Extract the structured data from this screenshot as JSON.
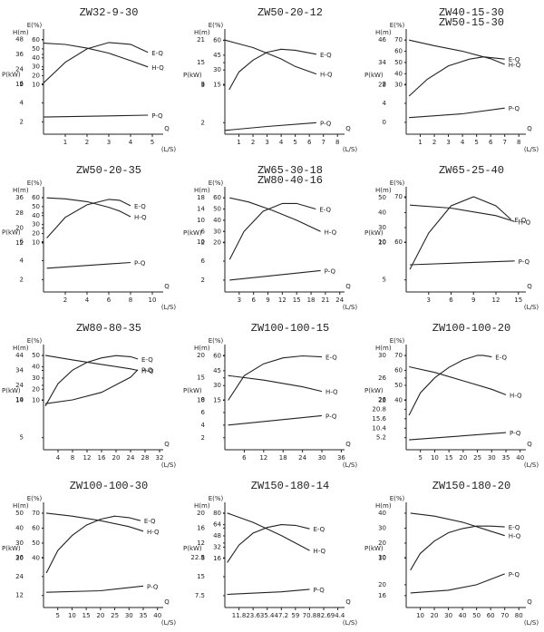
{
  "chart_data": [
    {
      "type": "line",
      "titles": [
        "ZW32-9-30"
      ],
      "xlabel": "Q",
      "xunit": "(L/S)",
      "xlim": [
        0,
        5.5
      ],
      "xticks": [
        1,
        2,
        3,
        4,
        5
      ],
      "ylabel": "H(m)",
      "ylim": [
        -28,
        52
      ],
      "yticks": [
        12,
        24,
        36,
        48
      ],
      "y2label": "E(%)",
      "y2lim": [
        -45,
        66
      ],
      "y2ticks": [
        10,
        20,
        30,
        40,
        50,
        60
      ],
      "y3label": "P(kW)",
      "y3lim": [
        0.7,
        11.2
      ],
      "y3ticks": [
        2,
        4,
        6
      ],
      "series": [
        {
          "name": "E-Q",
          "axis": "y2",
          "x": [
            0,
            1,
            2,
            3,
            4,
            4.8
          ],
          "values": [
            12,
            35,
            50,
            57,
            55,
            46
          ]
        },
        {
          "name": "H-Q",
          "axis": "y",
          "x": [
            0,
            1,
            2,
            3,
            4,
            4.8
          ],
          "values": [
            45,
            44,
            41,
            37,
            31,
            26
          ]
        },
        {
          "name": "P-Q",
          "axis": "y3",
          "x": [
            0,
            4.8
          ],
          "values": [
            2.5,
            2.7
          ]
        }
      ]
    },
    {
      "type": "line",
      "titles": [
        "ZW50-20-12"
      ],
      "xlabel": "Q",
      "xunit": "(L/S)",
      "xlim": [
        0,
        8.5
      ],
      "xticks": [
        1,
        2,
        3,
        4,
        5,
        6,
        7,
        8
      ],
      "ylabel": "H(m)",
      "ylim": [
        -4,
        22.5
      ],
      "yticks": [
        9,
        15,
        21
      ],
      "y2label": "E(%)",
      "y2lim": [
        -35,
        66
      ],
      "y2ticks": [
        15,
        30,
        45,
        60
      ],
      "y3label": "P(kW)",
      "y3lim": [
        1.7,
        4.3
      ],
      "y3ticks": [
        2,
        3
      ],
      "series": [
        {
          "name": "E-Q",
          "axis": "y2",
          "x": [
            0.3,
            1,
            2,
            3,
            4,
            5,
            6.5
          ],
          "values": [
            10,
            28,
            40,
            48,
            51,
            50,
            46
          ]
        },
        {
          "name": "H-Q",
          "axis": "y",
          "x": [
            0,
            1,
            2,
            3,
            4,
            5,
            6.5
          ],
          "values": [
            21,
            20,
            19,
            17.5,
            16,
            14,
            12
          ]
        },
        {
          "name": "P-Q",
          "axis": "y3",
          "x": [
            0,
            3,
            6.5
          ],
          "values": [
            1.8,
            1.9,
            2.0
          ]
        }
      ]
    },
    {
      "type": "line",
      "titles": [
        "ZW40-15-30",
        "ZW50-15-30"
      ],
      "xlabel": "Q",
      "xunit": "(L/S)",
      "xlim": [
        0,
        8.5
      ],
      "xticks": [
        1,
        2,
        3,
        4,
        5,
        6,
        7,
        8
      ],
      "ylabel": "H(m)",
      "ylim": [
        -4.4,
        49
      ],
      "yticks": [
        22,
        34,
        46
      ],
      "y2label": "E(%)",
      "y2lim": [
        -14,
        75
      ],
      "y2ticks": [
        30,
        40,
        50,
        60,
        70
      ],
      "y3label": "P(kW)",
      "y3lim": [
        -2.5,
        18.5
      ],
      "y3ticks": [
        0,
        4,
        8
      ],
      "series": [
        {
          "name": "E-Q",
          "axis": "y2",
          "x": [
            0.2,
            1.5,
            3,
            4.5,
            5.5,
            7
          ],
          "values": [
            20,
            35,
            47,
            53,
            55,
            53
          ]
        },
        {
          "name": "H-Q",
          "axis": "y",
          "x": [
            0.2,
            2,
            4,
            6,
            7
          ],
          "values": [
            46,
            43,
            40,
            36,
            33
          ]
        },
        {
          "name": "P-Q",
          "axis": "y3",
          "x": [
            0.2,
            4,
            7
          ],
          "values": [
            1,
            1.8,
            3
          ]
        }
      ]
    },
    {
      "type": "line",
      "titles": [
        "ZW50-20-35"
      ],
      "xlabel": "Q",
      "xunit": "(L/S)",
      "xlim": [
        0,
        11
      ],
      "xticks": [
        2,
        4,
        6,
        8,
        10
      ],
      "ylabel": "H(m)",
      "ylim": [
        -14,
        39
      ],
      "yticks": [
        12,
        20,
        28,
        36
      ],
      "y2label": "E(%)",
      "y2lim": [
        -45,
        66
      ],
      "y2ticks": [
        10,
        20,
        30,
        40,
        50,
        60
      ],
      "y3label": "P(kW)",
      "y3lim": [
        0.7,
        11.2
      ],
      "y3ticks": [
        2,
        4,
        6
      ],
      "series": [
        {
          "name": "E-Q",
          "axis": "y2",
          "x": [
            0.3,
            2,
            4,
            6,
            7,
            8
          ],
          "values": [
            15,
            38,
            52,
            58,
            57,
            51
          ]
        },
        {
          "name": "H-Q",
          "axis": "y",
          "x": [
            0.3,
            2,
            4,
            6,
            7,
            8
          ],
          "values": [
            36,
            35.5,
            34,
            31,
            29,
            26
          ]
        },
        {
          "name": "P-Q",
          "axis": "y3",
          "x": [
            0.3,
            8
          ],
          "values": [
            3.2,
            3.8
          ]
        }
      ]
    },
    {
      "type": "line",
      "titles": [
        "ZW65-30-18",
        "ZW80-40-16"
      ],
      "xlabel": "Q",
      "xunit": "(L/S)",
      "xlim": [
        0,
        25
      ],
      "xticks": [
        3,
        6,
        9,
        12,
        15,
        18,
        21,
        24
      ],
      "ylabel": "H(m)",
      "ylim": [
        -15.6,
        20
      ],
      "yticks": [
        2,
        6,
        10,
        14,
        18
      ],
      "y2label": "E(%)",
      "y2lim": [
        -24,
        65
      ],
      "y2ticks": [
        20,
        30,
        40,
        50,
        60
      ],
      "y3label": "P(kW)",
      "y3lim": [
        -0.5,
        20.5
      ],
      "y3ticks": [
        2,
        6,
        10
      ],
      "series": [
        {
          "name": "E-Q",
          "axis": "y2",
          "x": [
            1,
            4,
            8,
            12,
            15,
            19
          ],
          "values": [
            5,
            30,
            48,
            55,
            55,
            50
          ]
        },
        {
          "name": "H-Q",
          "axis": "y",
          "x": [
            1,
            5,
            10,
            15,
            20
          ],
          "values": [
            18,
            16.5,
            13.5,
            10,
            6
          ]
        },
        {
          "name": "P-Q",
          "axis": "y3",
          "x": [
            1,
            20
          ],
          "values": [
            2,
            4
          ]
        }
      ]
    },
    {
      "type": "line",
      "titles": [
        "ZW65-25-40"
      ],
      "xlabel": "Q",
      "xunit": "(L/S)",
      "xlim": [
        0,
        16
      ],
      "xticks": [
        3,
        6,
        9,
        12,
        15
      ],
      "ylabel": "H(m)",
      "ylim": [
        -13,
        53.6
      ],
      "yticks": [
        20,
        30,
        40,
        50
      ],
      "y2label": "E(%)",
      "y2lim": [
        49,
        71
      ],
      "y2ticks": [
        60,
        70
      ],
      "y3label": "P(kW)",
      "y3lim": [
        3.4,
        16.6
      ],
      "y3ticks": [
        5,
        10
      ],
      "series": [
        {
          "name": "E-Q",
          "axis": "y2",
          "x": [
            0.5,
            3,
            6,
            9,
            12,
            14
          ],
          "values": [
            54,
            62,
            68,
            70,
            68,
            65
          ]
        },
        {
          "name": "H-Q",
          "axis": "y",
          "x": [
            0.5,
            6,
            12,
            14.5
          ],
          "values": [
            45,
            43,
            38,
            34
          ]
        },
        {
          "name": "P-Q",
          "axis": "y3",
          "x": [
            0.5,
            14.5
          ],
          "values": [
            7,
            7.5
          ]
        }
      ]
    },
    {
      "type": "line",
      "titles": [
        "ZW80-80-35"
      ],
      "xlabel": "Q",
      "xunit": "(L/S)",
      "xlim": [
        0,
        33
      ],
      "xticks": [
        4,
        8,
        12,
        16,
        20,
        24,
        28,
        32
      ],
      "ylabel": "H(m)",
      "ylim": [
        -19,
        47.6
      ],
      "yticks": [
        14,
        24,
        34,
        44
      ],
      "y2label": "E(%)",
      "y2lim": [
        -34,
        55
      ],
      "y2ticks": [
        10,
        20,
        30,
        40,
        50
      ],
      "y3label": "P(kW)",
      "y3lim": [
        3.4,
        16.6
      ],
      "y3ticks": [
        5,
        10
      ],
      "series": [
        {
          "name": "E-Q",
          "axis": "y2",
          "x": [
            0.5,
            4,
            8,
            12,
            16,
            20,
            24,
            26
          ],
          "values": [
            5,
            25,
            37,
            44,
            48,
            50,
            49,
            47
          ]
        },
        {
          "name": "H-Q",
          "axis": "y",
          "x": [
            0.5,
            8,
            16,
            24,
            26
          ],
          "values": [
            44,
            41,
            38,
            35,
            34
          ]
        },
        {
          "name": "P-Q",
          "axis": "y3",
          "x": [
            0.5,
            8,
            16,
            24,
            26
          ],
          "values": [
            9.5,
            10,
            11,
            13,
            14
          ]
        }
      ]
    },
    {
      "type": "line",
      "titles": [
        "ZW100-100-15"
      ],
      "xlabel": "Q",
      "xunit": "(L/S)",
      "xlim": [
        0,
        37
      ],
      "xticks": [
        6,
        12,
        18,
        24,
        30,
        36
      ],
      "ylabel": "H(m)",
      "ylim": [
        -1,
        21.2
      ],
      "yticks": [
        10,
        15,
        20
      ],
      "y2label": "E(%)",
      "y2lim": [
        -35,
        66
      ],
      "y2ticks": [
        15,
        30,
        45,
        60
      ],
      "y3label": "P(kW)",
      "y3lim": [
        0.1,
        15.9
      ],
      "y3ticks": [
        2,
        4,
        6,
        8
      ],
      "series": [
        {
          "name": "E-Q",
          "axis": "y2",
          "x": [
            1,
            6,
            12,
            18,
            24,
            30
          ],
          "values": [
            15,
            40,
            52,
            58,
            60,
            59
          ]
        },
        {
          "name": "H-Q",
          "axis": "y",
          "x": [
            1,
            12,
            24,
            30
          ],
          "values": [
            15.5,
            14.5,
            13,
            12
          ]
        },
        {
          "name": "P-Q",
          "axis": "y3",
          "x": [
            1,
            30
          ],
          "values": [
            4,
            5.5
          ]
        }
      ]
    },
    {
      "type": "line",
      "titles": [
        "ZW100-100-20"
      ],
      "xlabel": "Q",
      "xunit": "(L/S)",
      "xlim": [
        0,
        42
      ],
      "xticks": [
        5,
        10,
        15,
        20,
        25,
        30,
        35,
        40
      ],
      "ylabel": "H(m)",
      "ylim": [
        13.2,
        31
      ],
      "yticks": [
        22,
        26,
        30
      ],
      "y2label": "E(%)",
      "y2lim": [
        7,
        73.6
      ],
      "y2ticks": [
        40,
        50,
        60,
        70
      ],
      "y3label": "P(kW)",
      "y3lim": [
        -1.4,
        53.3
      ],
      "y3ticks": [
        5.2,
        10.4,
        15.6,
        20.8,
        26
      ],
      "series": [
        {
          "name": "E-Q",
          "axis": "y2",
          "x": [
            1,
            5,
            10,
            15,
            20,
            25,
            27,
            30
          ],
          "values": [
            30,
            45,
            55,
            62,
            67,
            70,
            70,
            69
          ]
        },
        {
          "name": "H-Q",
          "axis": "y",
          "x": [
            1,
            10,
            20,
            30,
            35
          ],
          "values": [
            28,
            27,
            25.5,
            24,
            23
          ]
        },
        {
          "name": "P-Q",
          "axis": "y3",
          "x": [
            1,
            35
          ],
          "values": [
            4,
            8
          ]
        }
      ]
    },
    {
      "type": "line",
      "titles": [
        "ZW100-100-30"
      ],
      "xlabel": "Q",
      "xunit": "(L/S)",
      "xlim": [
        0,
        42
      ],
      "xticks": [
        5,
        10,
        15,
        20,
        25,
        30,
        35,
        40
      ],
      "ylabel": "H(m)",
      "ylim": [
        -13,
        53.6
      ],
      "yticks": [
        20,
        30,
        40,
        50
      ],
      "y2label": "E(%)",
      "y2lim": [
        7,
        73.6
      ],
      "y2ticks": [
        40,
        50,
        60,
        70
      ],
      "y3label": "P(kW)",
      "y3lim": [
        4.4,
        67.4
      ],
      "y3ticks": [
        12,
        24,
        36
      ],
      "series": [
        {
          "name": "E-Q",
          "axis": "y2",
          "x": [
            1,
            5,
            10,
            15,
            20,
            25,
            30,
            34
          ],
          "values": [
            30,
            45,
            55,
            62,
            66,
            68,
            67,
            65
          ]
        },
        {
          "name": "H-Q",
          "axis": "y",
          "x": [
            1,
            10,
            20,
            30,
            35
          ],
          "values": [
            50,
            48,
            45,
            41,
            38
          ]
        },
        {
          "name": "P-Q",
          "axis": "y3",
          "x": [
            1,
            20,
            35
          ],
          "values": [
            14,
            15,
            18
          ]
        }
      ]
    },
    {
      "type": "line",
      "titles": [
        "ZW150-180-14"
      ],
      "xlabel": "Q",
      "xunit": "(L/S)",
      "xlim": [
        0,
        100
      ],
      "xticks": [
        11.8,
        23.6,
        35.4,
        47.2,
        59,
        70.8,
        82.6,
        94.4
      ],
      "ylabel": "H(m)",
      "ylim": [
        -5.2,
        21.4
      ],
      "yticks": [
        8,
        12,
        16,
        20
      ],
      "y2label": "E(%)",
      "y2lim": [
        -54,
        88
      ],
      "y2ticks": [
        16,
        32,
        48,
        64,
        80
      ],
      "y3label": "P(kW)",
      "y3lim": [
        2.8,
        42.3
      ],
      "y3ticks": [
        7.5,
        15,
        22.5
      ],
      "series": [
        {
          "name": "E-Q",
          "axis": "y2",
          "x": [
            2,
            11.8,
            23.6,
            35.4,
            47.2,
            59,
            70.8
          ],
          "values": [
            10,
            35,
            52,
            60,
            64,
            63,
            58
          ]
        },
        {
          "name": "H-Q",
          "axis": "y",
          "x": [
            2,
            23.6,
            47.2,
            70.8
          ],
          "values": [
            20,
            17.5,
            14,
            10
          ]
        },
        {
          "name": "P-Q",
          "axis": "y3",
          "x": [
            2,
            47.2,
            70.8
          ],
          "values": [
            8,
            9,
            10
          ]
        }
      ]
    },
    {
      "type": "line",
      "titles": [
        "ZW150-180-20"
      ],
      "xlabel": "Q",
      "xunit": "(L/S)",
      "xlim": [
        0,
        85
      ],
      "xticks": [
        10,
        20,
        30,
        40,
        50,
        60,
        70,
        80
      ],
      "ylabel": "H(m)",
      "ylim": [
        -23,
        43.6
      ],
      "yticks": [
        10,
        20,
        30,
        40
      ],
      "y2label": "E(%)",
      "y2lim": [
        -40,
        80
      ],
      "y2ticks": [],
      "y3label": "P(kW)",
      "y3lim": [
        11.6,
        48.4
      ],
      "y3ticks": [
        16,
        20,
        30
      ],
      "series": [
        {
          "name": "E-Q",
          "axis": "y2",
          "x": [
            3,
            10,
            20,
            30,
            40,
            50,
            60,
            70
          ],
          "values": [
            5,
            25,
            40,
            50,
            55,
            58,
            58,
            57
          ]
        },
        {
          "name": "H-Q",
          "axis": "y",
          "x": [
            3,
            20,
            40,
            60,
            70
          ],
          "values": [
            40,
            38,
            34,
            28,
            25
          ]
        },
        {
          "name": "P-Q",
          "axis": "y3",
          "x": [
            3,
            30,
            50,
            70
          ],
          "values": [
            17,
            18,
            20,
            24
          ]
        }
      ]
    }
  ]
}
